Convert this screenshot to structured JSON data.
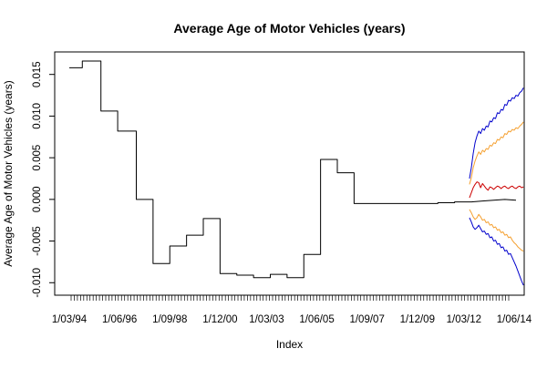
{
  "chart_data": {
    "type": "line",
    "title": "Average Age of Motor Vehicles (years)",
    "xlabel": "Index",
    "ylabel": "Average Age of Motor Vehicles (years)",
    "ylim": [
      -0.0115,
      0.0177
    ],
    "y_ticks": [
      -0.01,
      -0.005,
      0.0,
      0.005,
      0.01,
      0.015
    ],
    "y_tick_labels": [
      "-0.010",
      "-0.005",
      "0.000",
      "0.005",
      "0.010",
      "0.015"
    ],
    "x_index_range": [
      0,
      240
    ],
    "x_minor_tick_count": 140,
    "x_tick_labels": [
      {
        "index": 0,
        "label": "1/03/94"
      },
      {
        "index": 27,
        "label": "1/06/96"
      },
      {
        "index": 54,
        "label": "1/09/98"
      },
      {
        "index": 81,
        "label": "1/12/00"
      },
      {
        "index": 106,
        "label": "1/03/03"
      },
      {
        "index": 133,
        "label": "1/06/05"
      },
      {
        "index": 160,
        "label": "1/09/07"
      },
      {
        "index": 187,
        "label": "1/12/09"
      },
      {
        "index": 212,
        "label": "1/03/12"
      },
      {
        "index": 239,
        "label": "1/06/14"
      }
    ],
    "grid": false,
    "legend": "none",
    "series": [
      {
        "color": "#000000",
        "x": [
          0,
          7,
          7,
          17,
          17,
          26,
          26,
          36,
          36,
          45,
          45,
          54,
          54,
          63,
          63,
          72,
          72,
          81,
          81,
          90,
          90,
          99,
          99,
          108,
          108,
          117,
          117,
          126,
          126,
          135,
          135,
          144,
          144,
          153,
          153,
          162,
          162,
          171,
          171,
          180,
          180,
          189,
          189,
          198,
          198,
          207,
          207,
          216,
          222,
          228,
          234,
          240
        ],
        "y": [
          0.0158,
          0.0158,
          0.0166,
          0.0166,
          0.0106,
          0.0106,
          0.0082,
          0.0082,
          0.0,
          0.0,
          -0.0077,
          -0.0077,
          -0.0056,
          -0.0056,
          -0.0043,
          -0.0043,
          -0.0023,
          -0.0023,
          -0.0089,
          -0.0089,
          -0.0091,
          -0.0091,
          -0.0094,
          -0.0094,
          -0.009,
          -0.009,
          -0.0094,
          -0.0094,
          -0.0066,
          -0.0066,
          0.0048,
          0.0048,
          0.0032,
          0.0032,
          -0.0005,
          -0.0005,
          -0.0005,
          -0.0005,
          -0.0005,
          -0.0005,
          -0.0005,
          -0.0005,
          -0.0005,
          -0.0005,
          -0.0004,
          -0.0004,
          -0.0003,
          -0.0003,
          -0.0002,
          -0.0001,
          0.0,
          -0.0001
        ]
      },
      {
        "color": "#0000cc",
        "x": [
          215,
          216,
          217,
          218,
          219,
          220,
          221,
          222,
          223,
          224,
          225,
          226,
          227,
          228,
          229,
          230,
          231,
          232,
          233,
          234,
          235,
          236,
          237,
          238,
          239,
          240,
          241,
          242,
          243,
          244
        ],
        "y": [
          0.0025,
          0.0038,
          0.0055,
          0.0068,
          0.0076,
          0.0082,
          0.0079,
          0.0085,
          0.0083,
          0.0088,
          0.0087,
          0.0094,
          0.0093,
          0.0098,
          0.0097,
          0.0104,
          0.0103,
          0.0108,
          0.0107,
          0.0114,
          0.0113,
          0.0119,
          0.0118,
          0.0122,
          0.0121,
          0.0125,
          0.0124,
          0.0128,
          0.013,
          0.0134
        ]
      },
      {
        "color": "#f5a030",
        "x": [
          215,
          216,
          217,
          218,
          219,
          220,
          221,
          222,
          223,
          224,
          225,
          226,
          227,
          228,
          229,
          230,
          231,
          232,
          233,
          234,
          235,
          236,
          237,
          238,
          239,
          240,
          241,
          242,
          243,
          244
        ],
        "y": [
          0.0018,
          0.0026,
          0.0038,
          0.0046,
          0.0052,
          0.0057,
          0.0054,
          0.0059,
          0.0057,
          0.0061,
          0.006,
          0.0065,
          0.0064,
          0.0068,
          0.0067,
          0.0072,
          0.0071,
          0.0075,
          0.0074,
          0.0079,
          0.0078,
          0.0082,
          0.0081,
          0.0084,
          0.0083,
          0.0086,
          0.0085,
          0.0088,
          0.009,
          0.0093
        ]
      },
      {
        "color": "#cc0000",
        "x": [
          215,
          216,
          217,
          218,
          219,
          220,
          221,
          222,
          223,
          224,
          225,
          226,
          227,
          228,
          229,
          230,
          231,
          232,
          233,
          234,
          235,
          236,
          237,
          238,
          239,
          240,
          241,
          242,
          243,
          244
        ],
        "y": [
          0.0002,
          0.0008,
          0.0014,
          0.0018,
          0.0021,
          0.002,
          0.0014,
          0.0019,
          0.0016,
          0.0013,
          0.0011,
          0.0015,
          0.0014,
          0.0012,
          0.0014,
          0.0016,
          0.0015,
          0.0013,
          0.0015,
          0.0016,
          0.0014,
          0.0013,
          0.0015,
          0.0016,
          0.0014,
          0.0013,
          0.0015,
          0.0016,
          0.0014,
          0.0015
        ]
      },
      {
        "color": "#f5a030",
        "x": [
          215,
          216,
          217,
          218,
          219,
          220,
          221,
          222,
          223,
          224,
          225,
          226,
          227,
          228,
          229,
          230,
          231,
          232,
          233,
          234,
          235,
          236,
          237,
          238,
          239,
          240,
          241,
          242,
          243,
          244
        ],
        "y": [
          -0.0012,
          -0.0016,
          -0.0021,
          -0.0024,
          -0.0022,
          -0.0018,
          -0.0021,
          -0.0025,
          -0.0024,
          -0.0028,
          -0.0027,
          -0.0031,
          -0.003,
          -0.0034,
          -0.0033,
          -0.0037,
          -0.0036,
          -0.004,
          -0.0039,
          -0.0043,
          -0.0042,
          -0.0046,
          -0.0045,
          -0.0049,
          -0.0052,
          -0.0054,
          -0.0057,
          -0.0059,
          -0.0061,
          -0.0062
        ]
      },
      {
        "color": "#0000cc",
        "x": [
          215,
          216,
          217,
          218,
          219,
          220,
          221,
          222,
          223,
          224,
          225,
          226,
          227,
          228,
          229,
          230,
          231,
          232,
          233,
          234,
          235,
          236,
          237,
          238,
          239,
          240,
          241,
          242,
          243,
          244
        ],
        "y": [
          -0.0022,
          -0.0027,
          -0.0033,
          -0.0036,
          -0.0034,
          -0.0031,
          -0.0035,
          -0.0039,
          -0.0038,
          -0.0042,
          -0.0041,
          -0.0046,
          -0.0045,
          -0.005,
          -0.0049,
          -0.0054,
          -0.0053,
          -0.0058,
          -0.0057,
          -0.0062,
          -0.0061,
          -0.0066,
          -0.0065,
          -0.007,
          -0.0075,
          -0.008,
          -0.0086,
          -0.0092,
          -0.0098,
          -0.0103
        ]
      }
    ]
  }
}
